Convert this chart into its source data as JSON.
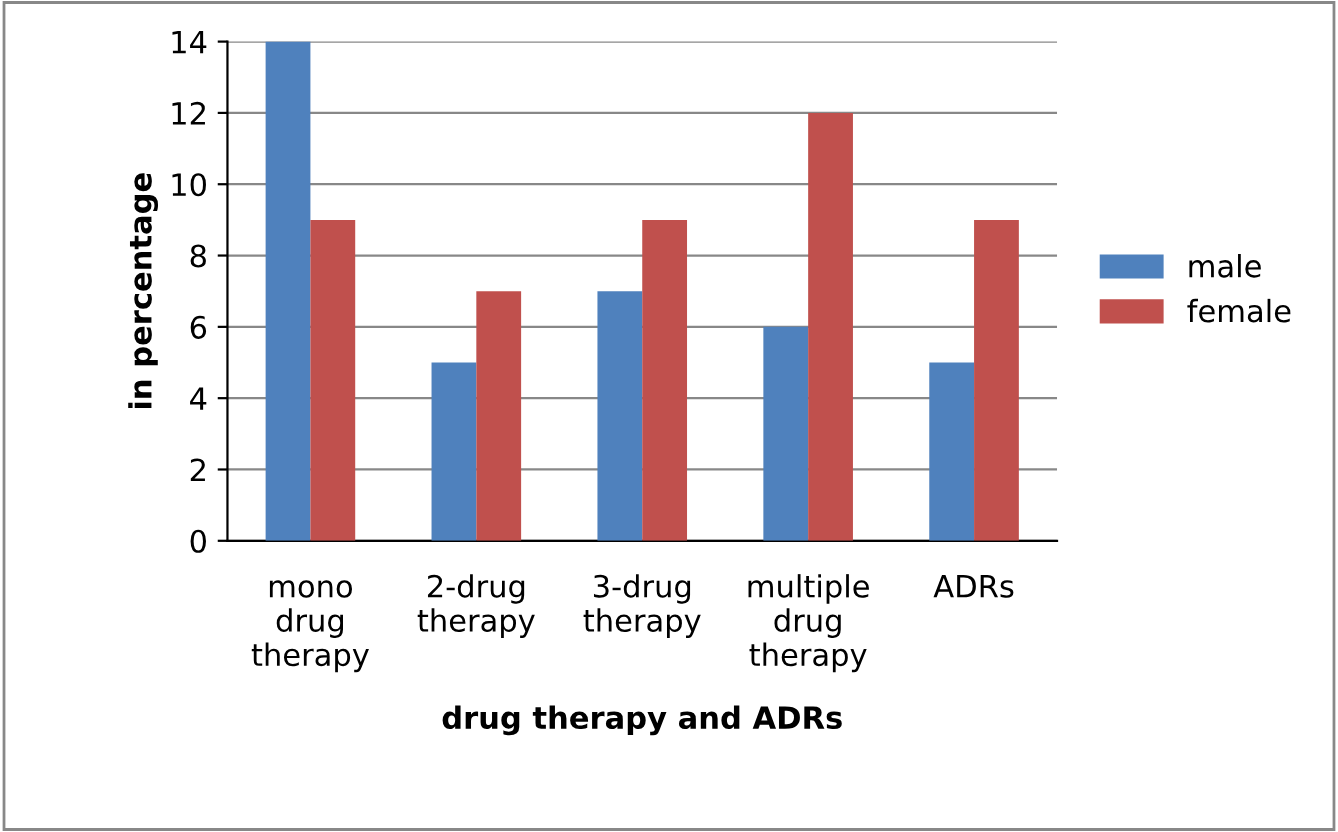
{
  "chart_data": {
    "type": "bar",
    "xlabel": "drug therapy and ADRs",
    "ylabel": "in percentage",
    "categories": [
      "mono drug therapy",
      "2-drug therapy",
      "3-drug therapy",
      "multiple drug therapy",
      "ADRs"
    ],
    "series": [
      {
        "name": "male",
        "color": "#4f81bd",
        "values": [
          14,
          5,
          7,
          6,
          5
        ]
      },
      {
        "name": "female",
        "color": "#c0504d",
        "values": [
          9,
          7,
          9,
          12,
          9
        ]
      }
    ],
    "ylim": [
      0,
      14
    ],
    "yticks": [
      0,
      2,
      4,
      6,
      8,
      10,
      12,
      14
    ],
    "grid": "y",
    "legend": "right"
  }
}
